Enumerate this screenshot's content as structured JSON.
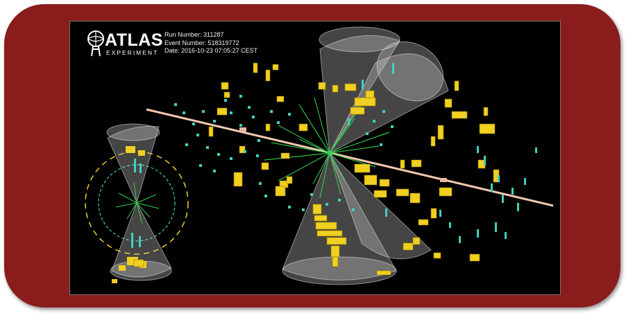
{
  "logo": {
    "name": "ATLAS",
    "subtitle": "EXPERIMENT"
  },
  "event_info": {
    "run_number": "Run Number: 311287",
    "event_number": "Event Number: 518319772",
    "date": "Date: 2016-10-23 07:05:27 CEST"
  },
  "colors": {
    "frame": "#8b1c1c",
    "background": "#000000",
    "beam_axis": "#f2c9b0",
    "calorimeter_cells": "#f0d020",
    "tracker_hits": "#40d0c0",
    "tracks": "#30d050",
    "jet_cones": "#c8c8c8"
  }
}
